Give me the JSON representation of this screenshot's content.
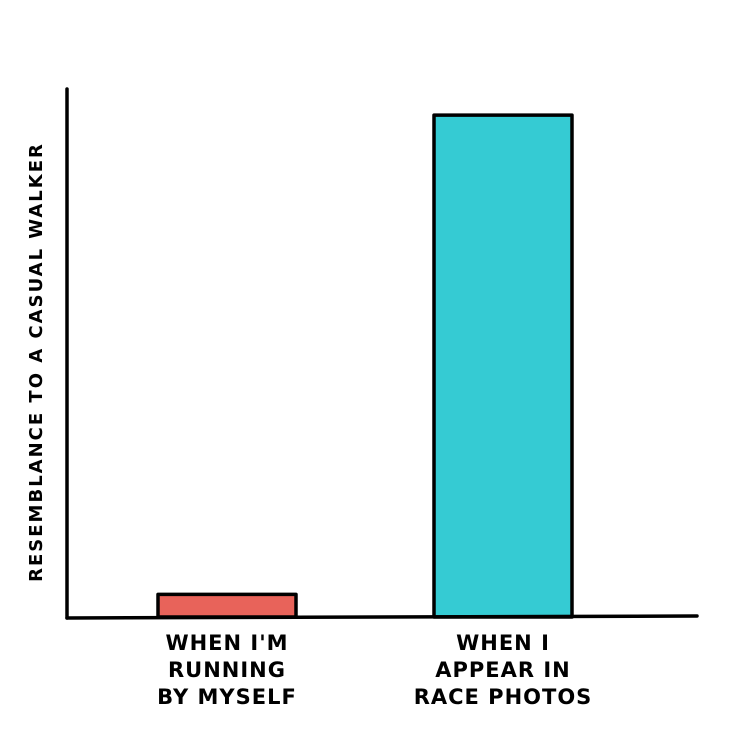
{
  "chart_data": {
    "type": "bar",
    "title": "",
    "xlabel": "",
    "ylabel": "RESEMBLANCE TO A CASUAL WALKER",
    "categories": [
      [
        "WHEN I'M",
        "RUNNING",
        "BY MYSELF"
      ],
      [
        "WHEN I",
        "APPEAR IN",
        "RACE PHOTOS"
      ]
    ],
    "values": [
      4.5,
      100
    ],
    "ylim": [
      0,
      106
    ],
    "grid": false,
    "colors": [
      "#e8635a",
      "#35cbd3"
    ]
  }
}
